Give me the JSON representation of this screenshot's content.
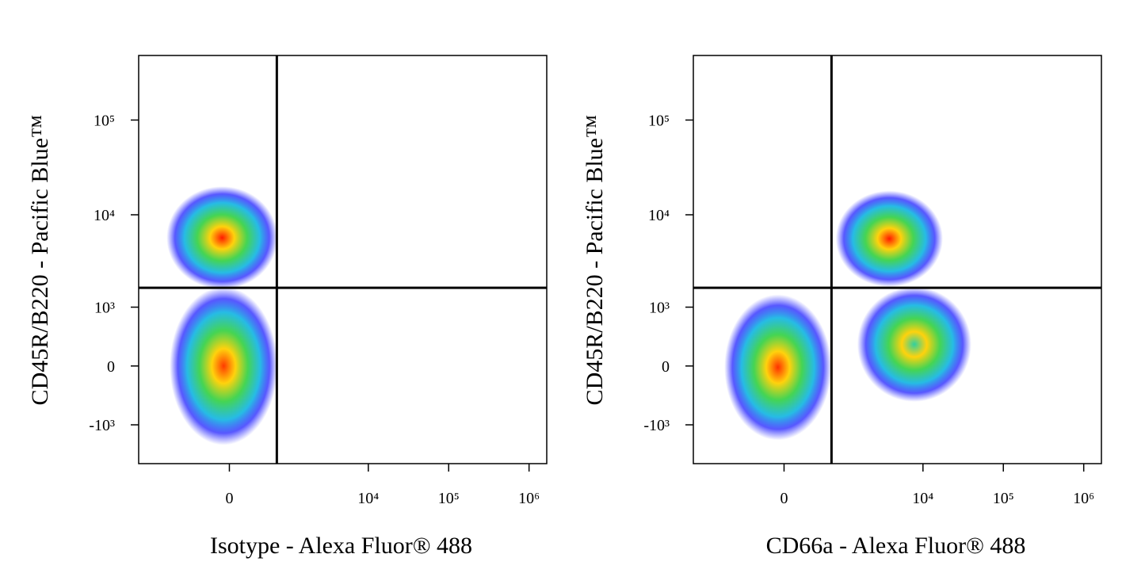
{
  "chart_data": [
    {
      "type": "scatter",
      "xlabel": "Isotype - Alexa Fluor® 488",
      "ylabel": "CD45R/B220 - Pacific Blue™",
      "xscale": {
        "type": "arcsinh",
        "cofactor": 374
      },
      "yscale": {
        "type": "arcsinh",
        "cofactor": 508
      },
      "xlim": [
        -2500,
        1660000
      ],
      "ylim": [
        -2700,
        480000
      ],
      "xticks": [
        0,
        {
          "value": 10000,
          "label": "10⁴"
        },
        {
          "value": 100000,
          "label": "10⁵"
        },
        {
          "value": 1000000,
          "label": "10⁶"
        }
      ],
      "yticks": [
        {
          "value": -1000,
          "label": "-10³"
        },
        0,
        {
          "value": 1000,
          "label": "10³"
        },
        {
          "value": 10000,
          "label": "10⁴"
        },
        {
          "value": 100000,
          "label": "10⁵"
        }
      ],
      "gates": {
        "x": 680,
        "y": 1660
      },
      "populations": [
        {
          "xrange": [
            -1100,
            700
          ],
          "yrange": [
            1600,
            20000
          ],
          "peak_color": "#ff1a00"
        },
        {
          "xrange": [
            -1000,
            700
          ],
          "yrange": [
            -1700,
            1700
          ],
          "peak_color": "#ff3a00"
        }
      ]
    },
    {
      "type": "scatter",
      "xlabel": "CD66a - Alexa Fluor® 488",
      "ylabel": "CD45R/B220 - Pacific Blue™",
      "xscale": {
        "type": "arcsinh",
        "cofactor": 374
      },
      "yscale": {
        "type": "arcsinh",
        "cofactor": 508
      },
      "xlim": [
        -2500,
        1660000
      ],
      "ylim": [
        -2700,
        480000
      ],
      "xticks": [
        0,
        {
          "value": 10000,
          "label": "10⁴"
        },
        {
          "value": 100000,
          "label": "10⁵"
        },
        {
          "value": 1000000,
          "label": "10⁶"
        }
      ],
      "yticks": [
        {
          "value": -1000,
          "label": "-10³"
        },
        0,
        {
          "value": 1000,
          "label": "10³"
        },
        {
          "value": 10000,
          "label": "10⁴"
        },
        {
          "value": 100000,
          "label": "10⁵"
        }
      ],
      "gates": {
        "x": 680,
        "y": 1660
      },
      "populations": [
        {
          "xrange": [
            -1000,
            680
          ],
          "yrange": [
            -1500,
            1400
          ],
          "peak_color": "#ff3000"
        },
        {
          "xrange": [
            780,
            17700
          ],
          "yrange": [
            1700,
            18000
          ],
          "peak_color": "#ff1a00"
        },
        {
          "xrange": [
            1500,
            40000
          ],
          "yrange": [
            -500,
            1700
          ],
          "peak_color": "#30d0a0"
        }
      ]
    }
  ]
}
